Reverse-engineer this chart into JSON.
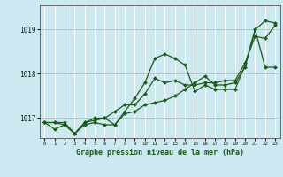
{
  "background_color": "#cce8f0",
  "plot_bg_color": "#cce8f0",
  "grid_color": "#ffffff",
  "line_color": "#1a5c1a",
  "marker_color": "#1a5c1a",
  "xlabel": "Graphe pression niveau de la mer (hPa)",
  "xlim": [
    -0.5,
    23.5
  ],
  "ylim": [
    1016.55,
    1019.55
  ],
  "yticks": [
    1017,
    1018,
    1019
  ],
  "xticks": [
    0,
    1,
    2,
    3,
    4,
    5,
    6,
    7,
    8,
    9,
    10,
    11,
    12,
    13,
    14,
    15,
    16,
    17,
    18,
    19,
    20,
    21,
    22,
    23
  ],
  "series": [
    [
      1016.9,
      1016.75,
      1016.85,
      1016.65,
      1016.85,
      1016.9,
      1016.85,
      1016.85,
      1017.1,
      1017.15,
      1017.3,
      1017.35,
      1017.4,
      1017.5,
      1017.65,
      1017.8,
      1017.95,
      1017.75,
      1017.75,
      1017.8,
      1018.15,
      1019.0,
      1019.2,
      1019.15
    ],
    [
      1016.9,
      1016.9,
      1016.9,
      1016.65,
      1016.9,
      1017.0,
      1017.0,
      1016.85,
      1017.15,
      1017.45,
      1017.8,
      1018.35,
      1018.45,
      1018.35,
      1018.2,
      1017.6,
      1017.75,
      1017.65,
      1017.65,
      1017.65,
      1018.2,
      1019.0,
      1018.15,
      1018.15
    ],
    [
      1016.9,
      1016.9,
      1016.85,
      1016.65,
      1016.9,
      1016.95,
      1017.0,
      1017.15,
      1017.3,
      1017.3,
      1017.55,
      1017.9,
      1017.8,
      1017.85,
      1017.75,
      1017.75,
      1017.8,
      1017.8,
      1017.85,
      1017.85,
      1018.25,
      1018.85,
      1018.8,
      1019.1
    ]
  ]
}
